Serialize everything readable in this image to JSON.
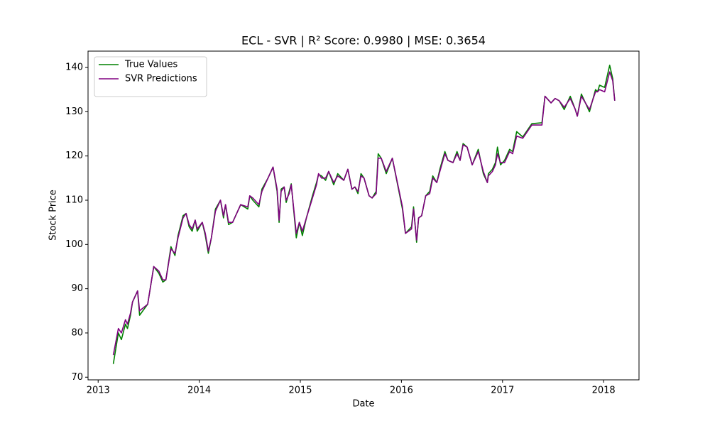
{
  "chart_data": {
    "type": "line",
    "title": "ECL - SVR | R² Score: 0.9980 | MSE: 0.3654",
    "xlabel": "Date",
    "ylabel": "Stock Price",
    "legend": "upper left",
    "grid": false,
    "xlim": [
      2012.9,
      2018.35
    ],
    "xticks": [
      2013,
      2014,
      2015,
      2016,
      2017,
      2018
    ],
    "ylim": [
      69.4,
      143.7
    ],
    "yticks": [
      70,
      80,
      90,
      100,
      110,
      120,
      130,
      140
    ],
    "x": [
      2013.15,
      2013.2,
      2013.23,
      2013.27,
      2013.29,
      2013.32,
      2013.34,
      2013.39,
      2013.41,
      2013.49,
      2013.55,
      2013.6,
      2013.64,
      2013.67,
      2013.72,
      2013.76,
      2013.79,
      2013.84,
      2013.87,
      2013.9,
      2013.93,
      2013.96,
      2013.98,
      2014.03,
      2014.06,
      2014.09,
      2014.12,
      2014.16,
      2014.21,
      2014.24,
      2014.26,
      2014.29,
      2014.33,
      2014.36,
      2014.41,
      2014.48,
      2014.5,
      2014.53,
      2014.59,
      2014.62,
      2014.68,
      2014.73,
      2014.77,
      2014.79,
      2014.81,
      2014.84,
      2014.86,
      2014.89,
      2014.91,
      2014.96,
      2014.99,
      2015.02,
      2015.06,
      2015.12,
      2015.16,
      2015.18,
      2015.21,
      2015.25,
      2015.28,
      2015.33,
      2015.37,
      2015.43,
      2015.47,
      2015.51,
      2015.54,
      2015.57,
      2015.6,
      2015.63,
      2015.68,
      2015.71,
      2015.75,
      2015.77,
      2015.8,
      2015.85,
      2015.91,
      2016.01,
      2016.04,
      2016.1,
      2016.12,
      2016.15,
      2016.17,
      2016.2,
      2016.24,
      2016.28,
      2016.31,
      2016.35,
      2016.38,
      2016.43,
      2016.46,
      2016.51,
      2016.55,
      2016.58,
      2016.61,
      2016.65,
      2016.7,
      2016.76,
      2016.81,
      2016.85,
      2016.86,
      2016.9,
      2016.93,
      2016.95,
      2016.98,
      2017.02,
      2017.07,
      2017.1,
      2017.14,
      2017.2,
      2017.29,
      2017.39,
      2017.42,
      2017.48,
      2017.52,
      2017.56,
      2017.61,
      2017.67,
      2017.72,
      2017.74,
      2017.78,
      2017.86,
      2017.92,
      2017.94,
      2017.96,
      2018.01,
      2018.06,
      2018.09,
      2018.11
    ],
    "series": [
      {
        "name": "True Values",
        "color": "#008000",
        "values": [
          73,
          80,
          78.5,
          82,
          81,
          84,
          87,
          89.5,
          84,
          86.5,
          95,
          93.5,
          91.5,
          92,
          99.5,
          97.5,
          102,
          106.5,
          107,
          104,
          103,
          105.5,
          103,
          105,
          102,
          98,
          101.5,
          108,
          110,
          106,
          109,
          104.5,
          105,
          106.5,
          109,
          108,
          111,
          110,
          108.5,
          112.5,
          115,
          117.5,
          112,
          105,
          112.5,
          113,
          109.5,
          112,
          113.7,
          101.5,
          105,
          102,
          106,
          111,
          114,
          115.8,
          115.5,
          114.5,
          116.5,
          113.5,
          116,
          114.5,
          117,
          112.5,
          113,
          111.5,
          116,
          115,
          111,
          110.5,
          112,
          120.5,
          119.5,
          116,
          119.5,
          108,
          102.5,
          104,
          108.5,
          100.5,
          106,
          106.5,
          111,
          112,
          115.5,
          114,
          117,
          121,
          119,
          118.5,
          121,
          119,
          122.8,
          122,
          118,
          121.5,
          116,
          114,
          116,
          117,
          118.5,
          122,
          118,
          119,
          121.5,
          121,
          125.5,
          124.3,
          127.3,
          127.5,
          133.5,
          132,
          133,
          132.5,
          130.5,
          133.5,
          130.5,
          129,
          134,
          130,
          135,
          134.5,
          136,
          135.5,
          140.5,
          137.5,
          132.5
        ]
      },
      {
        "name": "SVR Predictions",
        "color": "#800080",
        "values": [
          75,
          81,
          80,
          83,
          82,
          84.5,
          87,
          89.5,
          85,
          86.5,
          95,
          94,
          92,
          92,
          99,
          98,
          101.5,
          106,
          107,
          104.5,
          103.5,
          105.5,
          103.5,
          105,
          102.5,
          98.5,
          101.5,
          107.5,
          110,
          106.5,
          109,
          105,
          105,
          106.5,
          109,
          108.5,
          111,
          110.5,
          109,
          112,
          115,
          117.5,
          112.5,
          105.5,
          112,
          113,
          110,
          111.5,
          113.5,
          102.5,
          105,
          103,
          106,
          110.5,
          113.5,
          116,
          115,
          115,
          116.5,
          114,
          115.5,
          114.5,
          117,
          112.5,
          113,
          112,
          115.5,
          115,
          111,
          110.5,
          111.5,
          119.5,
          119.5,
          116.5,
          119.5,
          108.5,
          102.5,
          103.5,
          108,
          101,
          106,
          106.5,
          111,
          111.5,
          115,
          114,
          116.5,
          120.5,
          119,
          118.5,
          120.5,
          119,
          122.5,
          122,
          118,
          121,
          116.5,
          114,
          115.5,
          116.5,
          118,
          120.5,
          118.5,
          118.5,
          121,
          120.5,
          124.5,
          124,
          127,
          127,
          133.5,
          132,
          133,
          132.5,
          131,
          133,
          130.5,
          129,
          133.5,
          130.5,
          134.5,
          134.5,
          135,
          134.5,
          139,
          137,
          132.5
        ]
      }
    ]
  }
}
